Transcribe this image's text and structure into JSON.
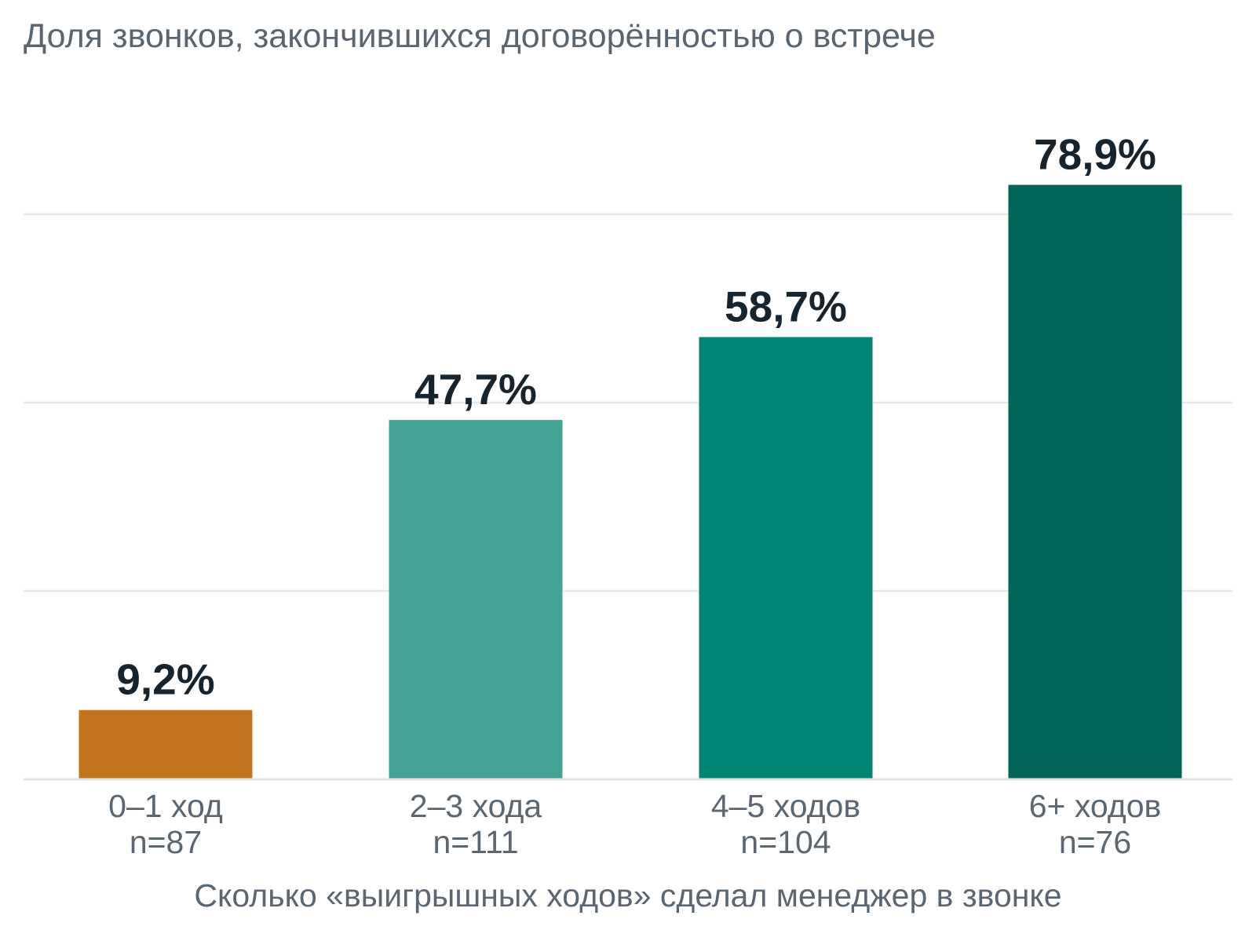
{
  "chart_data": {
    "type": "bar",
    "title": "Доля звонков, закончившихся договорённостью о встрече",
    "xlabel": "Сколько «выигрышных ходов» сделал менеджер в звонке",
    "ylabel": "",
    "categories": [
      "0–1 ход",
      "2–3 хода",
      "4–5 ходов",
      "6+ ходов"
    ],
    "sample_sizes": [
      "n=87",
      "n=111",
      "n=104",
      "n=76"
    ],
    "values": [
      9.2,
      47.7,
      58.7,
      78.9
    ],
    "value_labels": [
      "9,2%",
      "47,7%",
      "58,7%",
      "78,9%"
    ],
    "bar_colors": [
      "#c4741e",
      "#47a296",
      "#018676",
      "#016557"
    ],
    "ylim": [
      0,
      75
    ],
    "gridlines": [
      25,
      50,
      75
    ],
    "grid": true,
    "legend": "none"
  }
}
